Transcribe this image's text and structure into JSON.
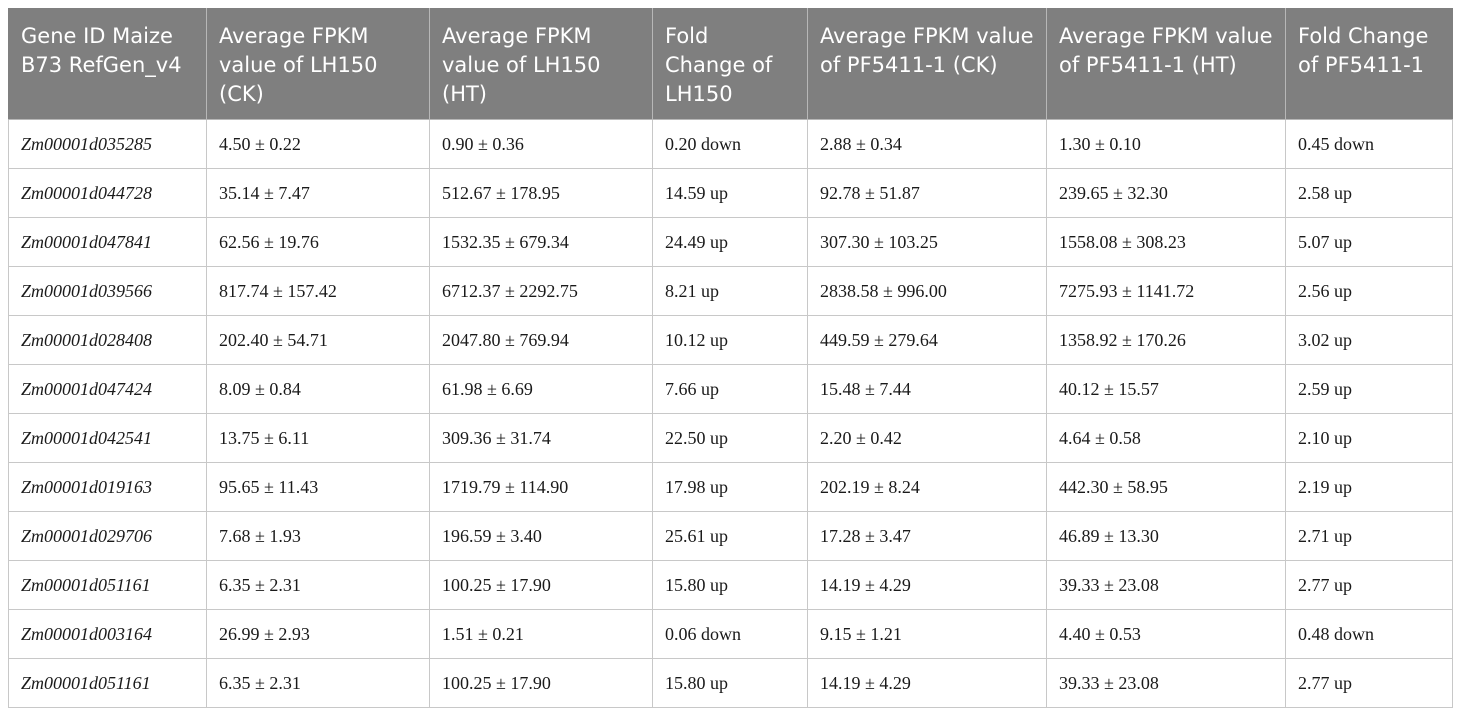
{
  "table": {
    "headers": [
      "Gene ID Maize B73 RefGen_v4",
      "Average FPKM value of LH150 (CK)",
      "Average FPKM value of LH150 (HT)",
      "Fold Change of LH150",
      "Average FPKM value of PF5411-1 (CK)",
      "Average FPKM value of PF5411-1 (HT)",
      "Fold Change of PF5411-1"
    ],
    "rows": [
      [
        "Zm00001d035285",
        "4.50 ± 0.22",
        "0.90 ± 0.36",
        "0.20 down",
        "2.88 ± 0.34",
        "1.30 ± 0.10",
        "0.45 down"
      ],
      [
        "Zm00001d044728",
        "35.14 ± 7.47",
        "512.67 ± 178.95",
        "14.59 up",
        "92.78 ± 51.87",
        "239.65 ± 32.30",
        "2.58 up"
      ],
      [
        "Zm00001d047841",
        "62.56 ± 19.76",
        "1532.35 ± 679.34",
        "24.49 up",
        "307.30 ± 103.25",
        "1558.08 ± 308.23",
        "5.07 up"
      ],
      [
        "Zm00001d039566",
        "817.74 ± 157.42",
        "6712.37 ± 2292.75",
        "8.21 up",
        "2838.58 ± 996.00",
        "7275.93 ± 1141.72",
        "2.56 up"
      ],
      [
        "Zm00001d028408",
        "202.40 ± 54.71",
        "2047.80 ± 769.94",
        "10.12 up",
        "449.59 ± 279.64",
        "1358.92 ± 170.26",
        "3.02 up"
      ],
      [
        "Zm00001d047424",
        "8.09 ± 0.84",
        "61.98 ± 6.69",
        "7.66 up",
        "15.48 ± 7.44",
        "40.12 ± 15.57",
        "2.59 up"
      ],
      [
        "Zm00001d042541",
        "13.75 ± 6.11",
        "309.36 ± 31.74",
        "22.50 up",
        "2.20 ± 0.42",
        "4.64 ± 0.58",
        "2.10 up"
      ],
      [
        "Zm00001d019163",
        "95.65 ± 11.43",
        "1719.79 ± 114.90",
        "17.98 up",
        "202.19 ± 8.24",
        "442.30 ± 58.95",
        "2.19 up"
      ],
      [
        "Zm00001d029706",
        "7.68 ± 1.93",
        "196.59 ± 3.40",
        "25.61 up",
        "17.28 ± 3.47",
        "46.89 ± 13.30",
        "2.71 up"
      ],
      [
        "Zm00001d051161",
        "6.35 ± 2.31",
        "100.25 ± 17.90",
        "15.80 up",
        "14.19 ± 4.29",
        "39.33 ± 23.08",
        "2.77 up"
      ],
      [
        "Zm00001d003164",
        "26.99 ± 2.93",
        "1.51 ± 0.21",
        "0.06 down",
        "9.15 ± 1.21",
        "4.40 ± 0.53",
        "0.48 down"
      ],
      [
        "Zm00001d051161",
        "6.35 ± 2.31",
        "100.25 ± 17.90",
        "15.80 up",
        "14.19 ± 4.29",
        "39.33 ± 23.08",
        "2.77 up"
      ]
    ]
  }
}
